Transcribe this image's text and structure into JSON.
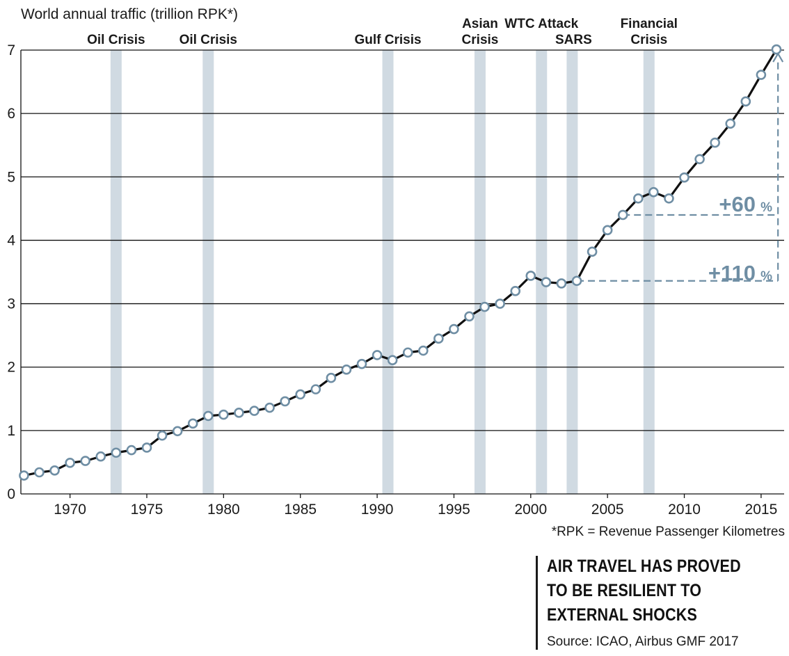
{
  "chart_data": {
    "type": "line",
    "ylabel": "World annual traffic (trillion RPK*)",
    "xlim": [
      1966.8,
      2016.5
    ],
    "ylim": [
      0,
      7
    ],
    "yticks": [
      0,
      1,
      2,
      3,
      4,
      5,
      6,
      7
    ],
    "xticks": [
      1970,
      1975,
      1980,
      1985,
      1990,
      1995,
      2000,
      2005,
      2010,
      2015
    ],
    "grid": "horizontal",
    "series": [
      {
        "x": [
          1967,
          1968,
          1969,
          1970,
          1971,
          1972,
          1973,
          1974,
          1975,
          1976,
          1977,
          1978,
          1979,
          1980,
          1981,
          1982,
          1983,
          1984,
          1985,
          1986,
          1987,
          1988,
          1989,
          1990,
          1991,
          1992,
          1993,
          1994,
          1995,
          1996,
          1997,
          1998,
          1999,
          2000,
          2001,
          2002,
          2003,
          2004,
          2005,
          2006,
          2007,
          2008,
          2009,
          2010,
          2011,
          2012,
          2013,
          2014,
          2015,
          2016
        ],
        "values": [
          0.29,
          0.34,
          0.37,
          0.49,
          0.52,
          0.59,
          0.65,
          0.69,
          0.73,
          0.92,
          0.99,
          1.11,
          1.23,
          1.25,
          1.28,
          1.31,
          1.36,
          1.46,
          1.57,
          1.65,
          1.83,
          1.96,
          2.05,
          2.19,
          2.11,
          2.23,
          2.26,
          2.45,
          2.6,
          2.8,
          2.95,
          3.0,
          3.2,
          3.44,
          3.34,
          3.32,
          3.36,
          3.82,
          4.16,
          4.4,
          4.66,
          4.76,
          4.66,
          4.99,
          5.28,
          5.54,
          5.84,
          6.19,
          6.61,
          7.01
        ]
      }
    ],
    "crisis_bands": [
      {
        "x": 1973,
        "label": [
          "Oil Crisis"
        ]
      },
      {
        "x": 1979,
        "label": [
          "Oil Crisis"
        ]
      },
      {
        "x": 1990.7,
        "label": [
          "Gulf Crisis"
        ]
      },
      {
        "x": 1996.7,
        "label": [
          "Asian",
          "Crisis"
        ]
      },
      {
        "x": 2000.7,
        "label": [
          "WTC Attack"
        ]
      },
      {
        "x": 2002.7,
        "label": [
          "SARS"
        ]
      },
      {
        "x": 2007.7,
        "label": [
          "Financial",
          "Crisis"
        ]
      }
    ],
    "annotations": [
      {
        "text": "+60",
        "suffix": "%",
        "from_x": 2006,
        "from_y": 4.4,
        "to_x": 2016,
        "to_y": 7.01
      },
      {
        "text": "+110",
        "suffix": "%",
        "from_x": 2003,
        "from_y": 3.36,
        "to_x": 2016,
        "to_y": 7.01
      }
    ],
    "footnote": "*RPK = Revenue Passenger Kilometres"
  },
  "headline": "AIR TRAVEL HAS PROVED TO BE RESILIENT TO EXTERNAL SHOCKS",
  "source": "Source: ICAO, Airbus GMF 2017",
  "colors": {
    "line": "#111111",
    "marker_stroke": "#6f8ea4",
    "crisis_band": "#d0dae2",
    "annotation": "#6f8ea4",
    "grid": "#111111"
  }
}
